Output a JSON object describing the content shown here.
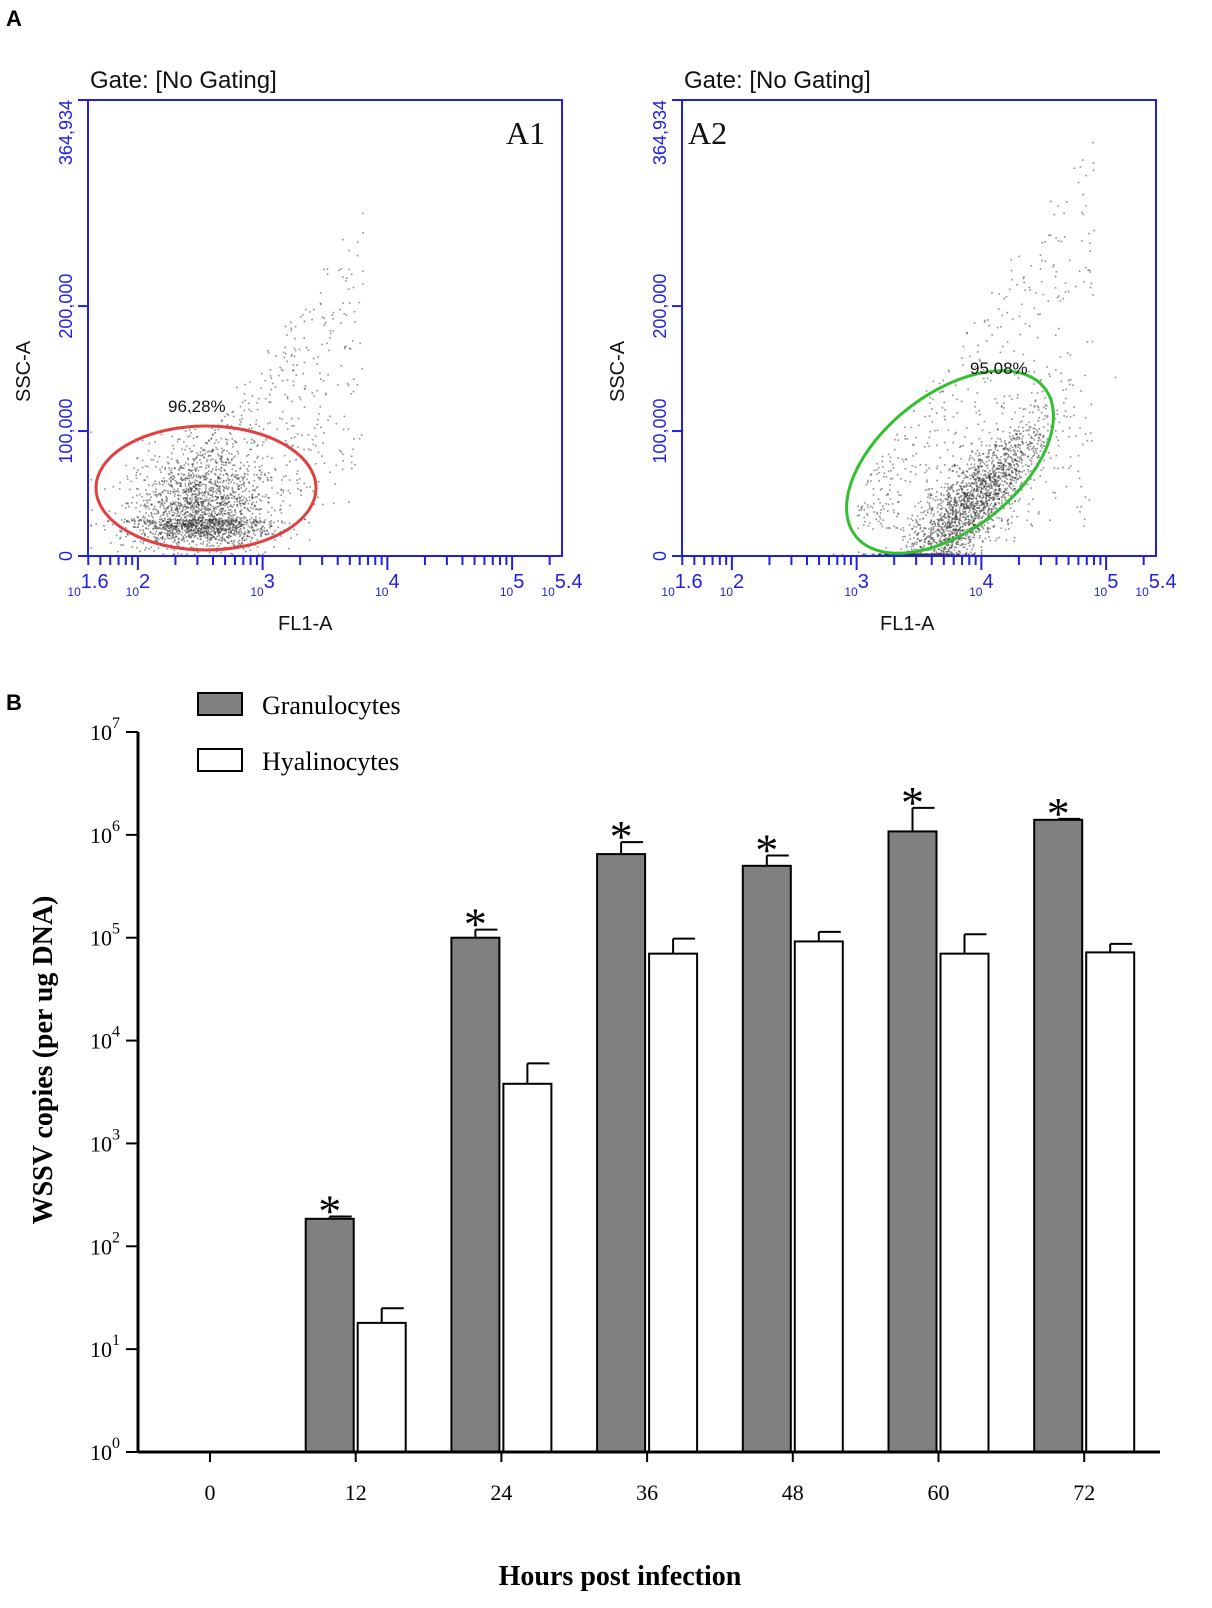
{
  "panel_a": {
    "letter": "A",
    "plots": [
      {
        "id": "A1",
        "gate_label": "Gate: [No Gating]",
        "panel_label": "A1",
        "x_label": "FL1-A",
        "y_label": "SSC-A",
        "y_ticks": [
          "0",
          "100,000",
          "200,000",
          "364,934"
        ],
        "x_ticks": [
          "10^1.6",
          "10^2",
          "10^3",
          "10^4",
          "10^5",
          "10^5.4"
        ],
        "gate_percent": "96.28%",
        "gate_color": "#e04040"
      },
      {
        "id": "A2",
        "gate_label": "Gate: [No Gating]",
        "panel_label": "A2",
        "x_label": "FL1-A",
        "y_label": "SSC-A",
        "y_ticks": [
          "0",
          "100,000",
          "200,000",
          "364,934"
        ],
        "x_ticks": [
          "10^1.6",
          "10^2",
          "10^3",
          "10^4",
          "10^5",
          "10^5.4"
        ],
        "gate_percent": "95.08%",
        "gate_color": "#30c030"
      }
    ]
  },
  "panel_b": {
    "letter": "B"
  },
  "chart_data": [
    {
      "type": "scatter",
      "panel": "A1",
      "title": "Gate: [No Gating]",
      "xlabel": "FL1-A",
      "ylabel": "SSC-A",
      "x_scale": "log",
      "xlim_log10": [
        1.6,
        5.4
      ],
      "ylim": [
        0,
        364934
      ],
      "gate": {
        "shape": "ellipse",
        "percent": 96.28,
        "center_log10_x": 2.3,
        "center_y": 50000,
        "color": "#e04040"
      },
      "population_center": {
        "log10_x": 2.5,
        "y": 30000
      }
    },
    {
      "type": "scatter",
      "panel": "A2",
      "title": "Gate: [No Gating]",
      "xlabel": "FL1-A",
      "ylabel": "SSC-A",
      "x_scale": "log",
      "xlim_log10": [
        1.6,
        5.4
      ],
      "ylim": [
        0,
        364934
      ],
      "gate": {
        "shape": "ellipse",
        "percent": 95.08,
        "center_log10_x": 3.85,
        "center_y": 65000,
        "color": "#30c030"
      },
      "population_center": {
        "log10_x": 3.9,
        "y": 40000
      }
    },
    {
      "type": "bar",
      "panel": "B",
      "title": "",
      "xlabel": "Hours post infection",
      "ylabel": "WSSV copies (per ug DNA)",
      "y_scale": "log",
      "ylim": [
        1,
        10000000
      ],
      "y_tick_labels": [
        {
          "base": "10",
          "exp": "0"
        },
        {
          "base": "10",
          "exp": "1"
        },
        {
          "base": "10",
          "exp": "2"
        },
        {
          "base": "10",
          "exp": "3"
        },
        {
          "base": "10",
          "exp": "4"
        },
        {
          "base": "10",
          "exp": "5"
        },
        {
          "base": "10",
          "exp": "6"
        },
        {
          "base": "10",
          "exp": "7"
        }
      ],
      "categories": [
        "0",
        "12",
        "24",
        "36",
        "48",
        "60",
        "72"
      ],
      "series": [
        {
          "name": "Granulocytes",
          "color": "#808080",
          "values": [
            null,
            185,
            100000,
            650000,
            500000,
            1080000,
            1400000
          ],
          "errors": [
            null,
            10,
            20000,
            200000,
            130000,
            750000,
            30000
          ],
          "significant": [
            false,
            true,
            true,
            true,
            true,
            true,
            true
          ]
        },
        {
          "name": "Hyalinocytes",
          "color": "#ffffff",
          "values": [
            null,
            18,
            3800,
            70000,
            92000,
            70000,
            72000
          ],
          "errors": [
            null,
            7,
            2200,
            28000,
            22000,
            38000,
            15000
          ],
          "significant": [
            false,
            false,
            false,
            false,
            false,
            false,
            false
          ]
        }
      ],
      "significance_marker": "*"
    }
  ]
}
